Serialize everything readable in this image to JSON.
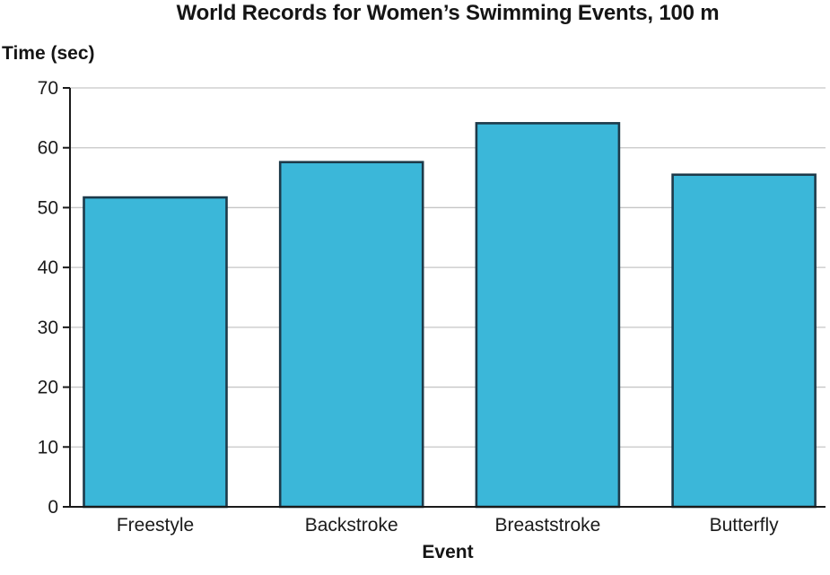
{
  "chart_data": {
    "type": "bar",
    "title": "World Records for Women’s Swimming Events, 100 m",
    "ylabel": "Time (sec)",
    "xlabel": "Event",
    "categories": [
      "Freestyle",
      "Backstroke",
      "Breaststroke",
      "Butterfly"
    ],
    "values": [
      51.7,
      57.6,
      64.1,
      55.5
    ],
    "ylim": [
      0,
      70
    ],
    "yticks": [
      0,
      10,
      20,
      30,
      40,
      50,
      60,
      70
    ],
    "grid": true,
    "legend_position": "none",
    "colors": {
      "bar_fill": "#3bb7d9",
      "bar_stroke": "#1d3a4a",
      "gridline": "#c6c6c6",
      "axis": "#1a1a1a",
      "text": "#1a1a1a"
    }
  }
}
